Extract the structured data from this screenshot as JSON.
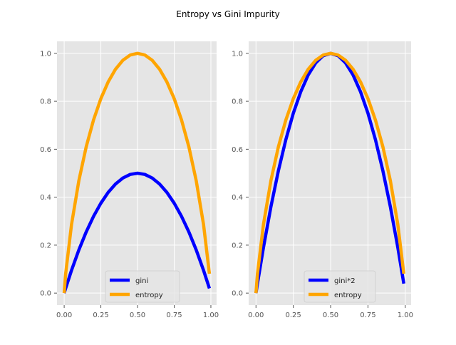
{
  "figure": {
    "title": "Entropy vs Gini Impurity",
    "colors": {
      "background": "#ffffff",
      "axes_face": "#e5e5e5",
      "grid": "#ffffff",
      "tick_text": "#555555"
    }
  },
  "chart_data": [
    {
      "type": "line",
      "title": "",
      "xlabel": "",
      "ylabel": "",
      "xlim": [
        -0.049,
        1.039
      ],
      "ylim": [
        -0.05,
        1.05
      ],
      "x_ticks": [
        0.0,
        0.25,
        0.5,
        0.75,
        1.0
      ],
      "x_tick_labels": [
        "0.00",
        "0.25",
        "0.50",
        "0.75",
        "1.00"
      ],
      "y_ticks": [
        0.0,
        0.2,
        0.4,
        0.6,
        0.8,
        1.0
      ],
      "y_tick_labels": [
        "0.0",
        "0.2",
        "0.4",
        "0.6",
        "0.8",
        "1.0"
      ],
      "grid": true,
      "legend_position": "lower-center",
      "x": [
        0.0,
        0.01,
        0.05,
        0.1,
        0.15,
        0.2,
        0.25,
        0.3,
        0.35,
        0.4,
        0.45,
        0.5,
        0.55,
        0.6,
        0.65,
        0.7,
        0.75,
        0.8,
        0.85,
        0.9,
        0.95,
        0.99
      ],
      "series": [
        {
          "name": "gini",
          "color": "#0000ff",
          "values": [
            0.0,
            0.0198,
            0.095,
            0.18,
            0.255,
            0.32,
            0.375,
            0.42,
            0.455,
            0.48,
            0.495,
            0.5,
            0.495,
            0.48,
            0.455,
            0.42,
            0.375,
            0.32,
            0.255,
            0.18,
            0.095,
            0.0198
          ]
        },
        {
          "name": "entropy",
          "color": "#ffa500",
          "values": [
            0.0,
            0.0808,
            0.286,
            0.469,
            0.61,
            0.722,
            0.811,
            0.881,
            0.934,
            0.971,
            0.993,
            1.0,
            0.993,
            0.971,
            0.934,
            0.881,
            0.811,
            0.722,
            0.61,
            0.469,
            0.286,
            0.0808
          ]
        }
      ]
    },
    {
      "type": "line",
      "title": "",
      "xlabel": "",
      "ylabel": "",
      "xlim": [
        -0.049,
        1.039
      ],
      "ylim": [
        -0.05,
        1.05
      ],
      "x_ticks": [
        0.0,
        0.25,
        0.5,
        0.75,
        1.0
      ],
      "x_tick_labels": [
        "0.00",
        "0.25",
        "0.50",
        "0.75",
        "1.00"
      ],
      "y_ticks": [
        0.0,
        0.2,
        0.4,
        0.6,
        0.8,
        1.0
      ],
      "y_tick_labels": [
        "0.0",
        "0.2",
        "0.4",
        "0.6",
        "0.8",
        "1.0"
      ],
      "grid": true,
      "legend_position": "lower-center",
      "x": [
        0.0,
        0.01,
        0.05,
        0.1,
        0.15,
        0.2,
        0.25,
        0.3,
        0.35,
        0.4,
        0.45,
        0.5,
        0.55,
        0.6,
        0.65,
        0.7,
        0.75,
        0.8,
        0.85,
        0.9,
        0.95,
        0.99
      ],
      "series": [
        {
          "name": "gini*2",
          "color": "#0000ff",
          "values": [
            0.0,
            0.0396,
            0.19,
            0.36,
            0.51,
            0.64,
            0.75,
            0.84,
            0.91,
            0.96,
            0.99,
            1.0,
            0.99,
            0.96,
            0.91,
            0.84,
            0.75,
            0.64,
            0.51,
            0.36,
            0.19,
            0.0396
          ]
        },
        {
          "name": "entropy",
          "color": "#ffa500",
          "values": [
            0.0,
            0.0808,
            0.286,
            0.469,
            0.61,
            0.722,
            0.811,
            0.881,
            0.934,
            0.971,
            0.993,
            1.0,
            0.993,
            0.971,
            0.934,
            0.881,
            0.811,
            0.722,
            0.61,
            0.469,
            0.286,
            0.0808
          ]
        }
      ]
    }
  ]
}
